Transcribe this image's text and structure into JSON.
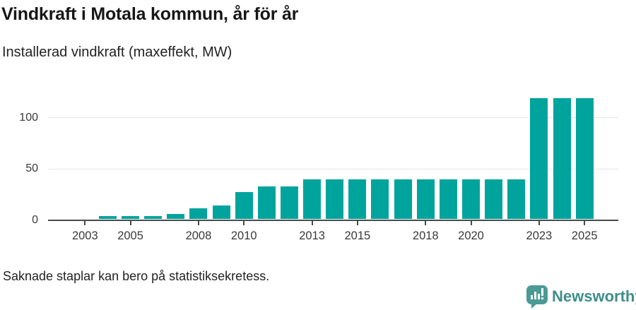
{
  "header": {
    "title": "Vindkraft i Motala kommun, år för år",
    "subtitle": "Installerad vindkraft (maxeffekt, MW)"
  },
  "chart_data": {
    "type": "bar",
    "title": "Vindkraft i Motala kommun, år för år",
    "subtitle": "Installerad vindkraft (maxeffekt, MW)",
    "ylabel": "Installerad vindkraft (maxeffekt, MW)",
    "xlabel": "",
    "years": [
      2003,
      2004,
      2005,
      2006,
      2007,
      2008,
      2009,
      2010,
      2011,
      2012,
      2013,
      2014,
      2015,
      2016,
      2017,
      2018,
      2019,
      2020,
      2021,
      2022,
      2023,
      2024,
      2025
    ],
    "values": [
      null,
      3,
      3,
      3,
      5.5,
      11,
      13.5,
      26.5,
      32,
      32,
      39,
      39,
      39,
      39,
      39,
      39,
      39,
      39,
      39,
      39,
      118.5,
      118.5,
      118.5
    ],
    "x_tick_years": [
      2003,
      2005,
      2008,
      2010,
      2013,
      2015,
      2018,
      2020,
      2023,
      2025
    ],
    "y_ticks": [
      0,
      50,
      100
    ],
    "y_gridlines": [
      50,
      100
    ],
    "ylim": [
      0,
      118.5
    ],
    "grid": "horizontal-only",
    "legend": "none",
    "bar_color": "#00a49c",
    "axis_color": "#4a4a4a",
    "gridline_color": "#e4e4e4",
    "missing_years_note": "2003 har ingen stapel"
  },
  "footer": {
    "note": "Saknade staplar kan bero på statistiksekretess."
  },
  "branding": {
    "logo_text": "Newsworthy",
    "logo_icon": "newsworthy-speech-bubble-bar-chart-icon",
    "brand_text_color": "#3e8e8a",
    "brand_icon_color": "#4a9a95"
  }
}
